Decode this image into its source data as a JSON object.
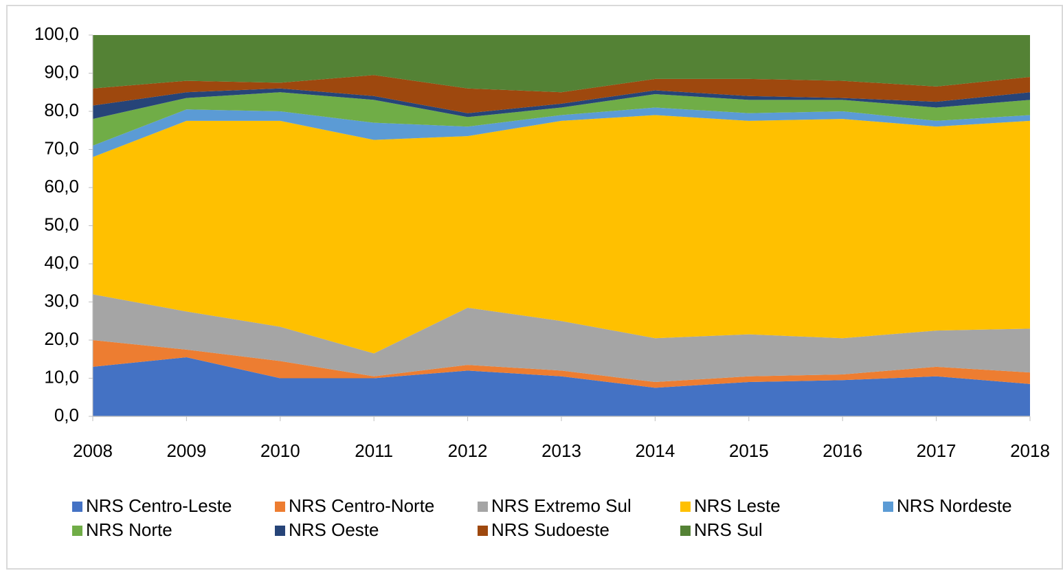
{
  "chart_data": {
    "type": "stacked-area",
    "categories": [
      "2008",
      "2009",
      "2010",
      "2011",
      "2012",
      "2013",
      "2014",
      "2015",
      "2016",
      "2017",
      "2018"
    ],
    "series": [
      {
        "name": "NRS Centro-Leste",
        "color": "#4472c4",
        "values": [
          13,
          15.5,
          10,
          10,
          12,
          10.5,
          7.5,
          9,
          9.5,
          10.5,
          8.5
        ]
      },
      {
        "name": "NRS Centro-Norte",
        "color": "#ed7d31",
        "values": [
          7,
          2,
          4.5,
          0.5,
          1.5,
          1.5,
          1.5,
          1.5,
          1.5,
          2.5,
          3
        ]
      },
      {
        "name": "NRS Extremo Sul",
        "color": "#a5a5a5",
        "values": [
          12,
          10,
          9,
          6,
          15,
          13,
          11.5,
          11,
          9.5,
          9.5,
          11.5
        ]
      },
      {
        "name": "NRS Leste",
        "color": "#ffc000",
        "values": [
          36,
          50,
          54,
          56,
          45,
          52.5,
          58.5,
          56,
          57.5,
          53.5,
          54.5
        ]
      },
      {
        "name": "NRS Nordeste",
        "color": "#5b9bd5",
        "values": [
          3,
          3,
          2.5,
          4.5,
          2.5,
          1.5,
          2,
          2,
          2,
          1.5,
          1.5
        ]
      },
      {
        "name": "NRS Norte",
        "color": "#70ad47",
        "values": [
          7,
          3,
          5,
          6,
          2.5,
          2,
          3.5,
          3.5,
          3,
          3.5,
          4
        ]
      },
      {
        "name": "NRS Oeste",
        "color": "#264478",
        "values": [
          3.5,
          1.5,
          1,
          1,
          1,
          1,
          1,
          1,
          0.5,
          1.5,
          2
        ]
      },
      {
        "name": "NRS Sudoeste",
        "color": "#9e480e",
        "values": [
          4.5,
          3,
          1.5,
          5.5,
          6.5,
          3,
          3,
          4.5,
          4.5,
          4,
          4
        ]
      },
      {
        "name": "NRS Sul",
        "color": "#548235",
        "values": [
          14,
          12,
          12.5,
          10.5,
          14,
          15,
          11.5,
          11.5,
          12,
          13.5,
          11
        ]
      }
    ],
    "ylim": [
      0,
      100
    ],
    "yticks": [
      {
        "value": 0,
        "label": "0,0"
      },
      {
        "value": 10,
        "label": "10,0"
      },
      {
        "value": 20,
        "label": "20,0"
      },
      {
        "value": 30,
        "label": "30,0"
      },
      {
        "value": 40,
        "label": "40,0"
      },
      {
        "value": 50,
        "label": "50,0"
      },
      {
        "value": 60,
        "label": "60,0"
      },
      {
        "value": 70,
        "label": "70,0"
      },
      {
        "value": 80,
        "label": "80,0"
      },
      {
        "value": 90,
        "label": "90,0"
      },
      {
        "value": 100,
        "label": "100,0"
      }
    ],
    "legend": "bottom"
  }
}
